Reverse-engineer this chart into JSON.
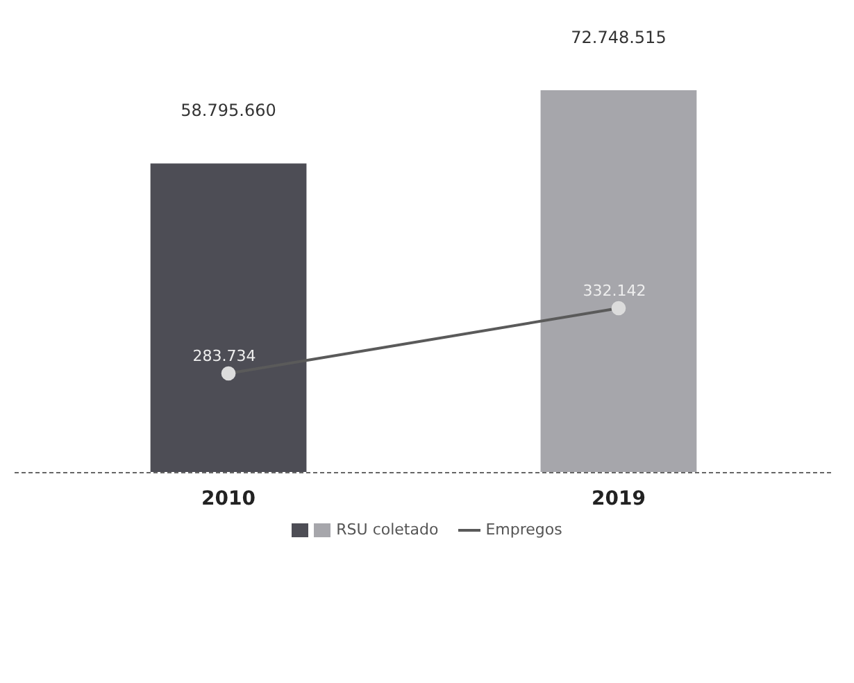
{
  "chart_data": {
    "type": "bar",
    "categories": [
      "2010",
      "2019"
    ],
    "tick_labels": "x",
    "legend": "bottom",
    "series": [
      {
        "name": "RSU coletado",
        "colors": [
          "#4d4d55",
          "#a6a6ab"
        ],
        "values": [
          58795660,
          72748515
        ],
        "value_labels": [
          "58.795.660",
          "72.748.515"
        ]
      },
      {
        "name": "Empregos",
        "type": "line",
        "axis": "y2",
        "color": "#5a5a5a",
        "marker": "circle",
        "values": [
          283734,
          332142
        ],
        "value_labels": [
          "283.734",
          "332.142"
        ]
      }
    ]
  }
}
